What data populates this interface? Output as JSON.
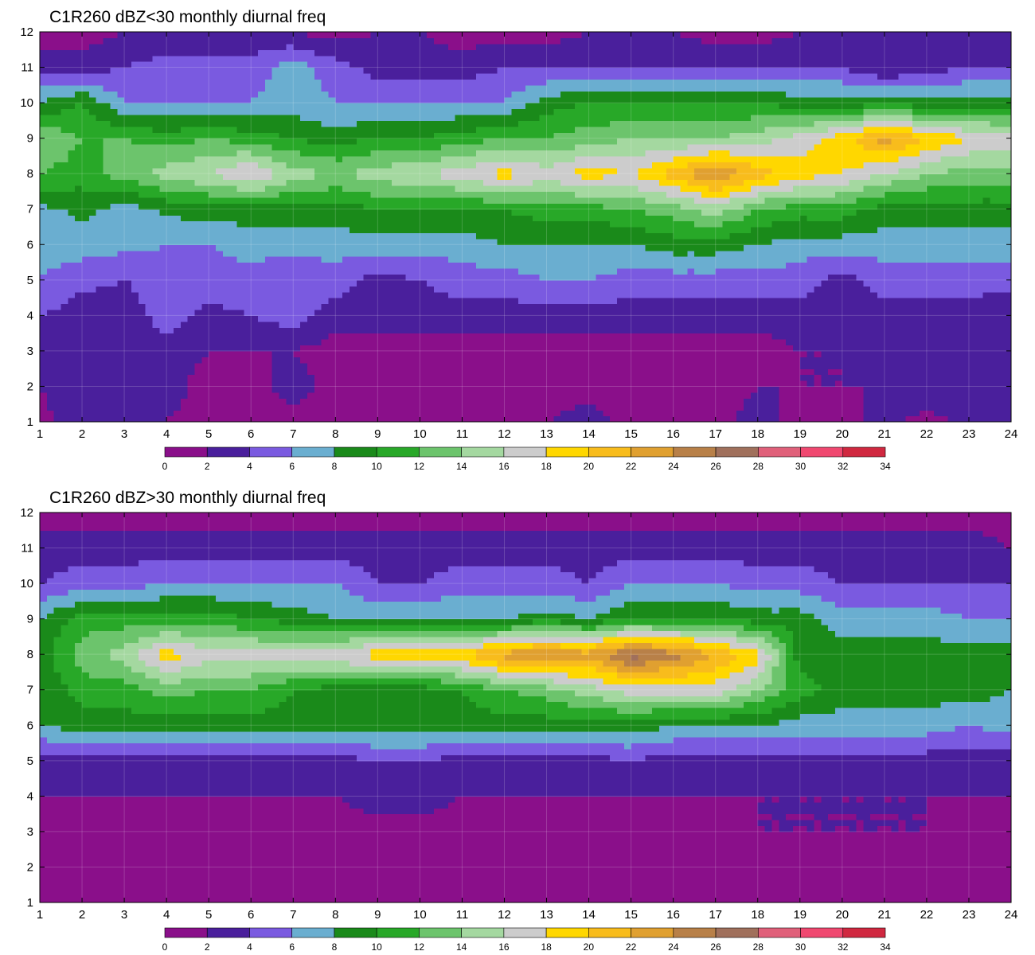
{
  "colorbar": {
    "levels": [
      0,
      2,
      4,
      6,
      8,
      10,
      12,
      14,
      16,
      18,
      20,
      22,
      24,
      26,
      28,
      30,
      32,
      34
    ],
    "colors": [
      "#8a0f8a",
      "#4a1f9c",
      "#7a5ae0",
      "#6aaed0",
      "#1a8a1a",
      "#28a828",
      "#6cc46c",
      "#a4d8a0",
      "#cccccc",
      "#ffd700",
      "#f8bc1c",
      "#e0a030",
      "#b88048",
      "#a0705c",
      "#e0607a",
      "#f04870",
      "#d02840"
    ],
    "contour_line_color": "#f0a030"
  },
  "chart_data": [
    {
      "type": "heatmap",
      "title": "C1R260 dBZ<30 monthly diurnal freq",
      "xlabel": "",
      "ylabel": "",
      "x": [
        1,
        2,
        3,
        4,
        5,
        6,
        7,
        8,
        9,
        10,
        11,
        12,
        13,
        14,
        15,
        16,
        17,
        18,
        19,
        20,
        21,
        22,
        23,
        24
      ],
      "y": [
        1,
        2,
        3,
        4,
        5,
        6,
        7,
        8,
        9,
        10,
        11,
        12
      ],
      "xlim": [
        1,
        24
      ],
      "ylim": [
        1,
        12
      ],
      "grid": true,
      "colorbar_ticks": [
        "0",
        "2",
        "4",
        "6",
        "8",
        "10",
        "12",
        "14",
        "16",
        "18",
        "20",
        "22",
        "24",
        "26",
        "28",
        "30",
        "32",
        "34"
      ],
      "z": [
        [
          1.5,
          3,
          3,
          2,
          1,
          1,
          1,
          1,
          1,
          1,
          1,
          1,
          2,
          3,
          1,
          1,
          1,
          3,
          1,
          1,
          3,
          1,
          3,
          3
        ],
        [
          2,
          3,
          3,
          3,
          1,
          1,
          3,
          1,
          1,
          1,
          1,
          1,
          1,
          1,
          1,
          1,
          1,
          2,
          2,
          2,
          2,
          4,
          3,
          3
        ],
        [
          2,
          3,
          3,
          3,
          2,
          2,
          2,
          1,
          1,
          1,
          1,
          1,
          1,
          1,
          1,
          1,
          1,
          1,
          2,
          2,
          3,
          3,
          3,
          3
        ],
        [
          4,
          3,
          2.8,
          5,
          3.5,
          4,
          5,
          3,
          3,
          3,
          3,
          3,
          3,
          3,
          3,
          3,
          3,
          3,
          3,
          4,
          3,
          3,
          3,
          2
        ],
        [
          6,
          4.5,
          4,
          5,
          5,
          5,
          4,
          5,
          3,
          4,
          5,
          5,
          6,
          6,
          5,
          5,
          5,
          5,
          5,
          3,
          5,
          5,
          5,
          5
        ],
        [
          7,
          7,
          6.5,
          6,
          6,
          7,
          7,
          7,
          7,
          7,
          7,
          8,
          8,
          8,
          8,
          9,
          9,
          8,
          7,
          7,
          7,
          7,
          7,
          7
        ],
        [
          7.5,
          8.5,
          7,
          8.5,
          9,
          9,
          9,
          9,
          10,
          10,
          10,
          10,
          11,
          11,
          12,
          13,
          15,
          12,
          11,
          11,
          9,
          9,
          9,
          9
        ],
        [
          12,
          11,
          13,
          15,
          16,
          18.5,
          15,
          14,
          15,
          16,
          17,
          19,
          17,
          19,
          18,
          21,
          24,
          21,
          19,
          18,
          16,
          14,
          13,
          13
        ],
        [
          14,
          12,
          12,
          11,
          12,
          11,
          10,
          9,
          10,
          10,
          11,
          12,
          12,
          13,
          14,
          14,
          14,
          15,
          17,
          19,
          23,
          20,
          18,
          17
        ],
        [
          8,
          10,
          6,
          6,
          6,
          6,
          7,
          6,
          6,
          6,
          6,
          6,
          9,
          10,
          10,
          10,
          10,
          10,
          9,
          9,
          9,
          9,
          9,
          9
        ],
        [
          3,
          3,
          4,
          5,
          5,
          5,
          7,
          5,
          3,
          3,
          3,
          4,
          4,
          4,
          4,
          4,
          4,
          4,
          4,
          4,
          2,
          3,
          4,
          4
        ],
        [
          1,
          1,
          2,
          2,
          2,
          2,
          2,
          1,
          2,
          2,
          1,
          1,
          1,
          2,
          2,
          2,
          1,
          1,
          2,
          2,
          2,
          2,
          2,
          2
        ]
      ]
    },
    {
      "type": "heatmap",
      "title": "C1R260 dBZ>30 monthly diurnal freq",
      "xlabel": "",
      "ylabel": "",
      "x": [
        1,
        2,
        3,
        4,
        5,
        6,
        7,
        8,
        9,
        10,
        11,
        12,
        13,
        14,
        15,
        16,
        17,
        18,
        19,
        20,
        21,
        22,
        23,
        24
      ],
      "y": [
        1,
        2,
        3,
        4,
        5,
        6,
        7,
        8,
        9,
        10,
        11,
        12
      ],
      "xlim": [
        1,
        24
      ],
      "ylim": [
        1,
        12
      ],
      "grid": true,
      "colorbar_ticks": [
        "0",
        "2",
        "4",
        "6",
        "8",
        "10",
        "12",
        "14",
        "16",
        "18",
        "20",
        "22",
        "24",
        "26",
        "28",
        "30",
        "32",
        "34"
      ],
      "z": [
        [
          1,
          1,
          1,
          1,
          1,
          1,
          1,
          1,
          1,
          1,
          1,
          1,
          1,
          1,
          1,
          1,
          1,
          1,
          1,
          1,
          1,
          1,
          1,
          1
        ],
        [
          1,
          1,
          1,
          1,
          1,
          1,
          1,
          1,
          1,
          1,
          1,
          1,
          1,
          1,
          1,
          1,
          1,
          1,
          1,
          1,
          1,
          1,
          1,
          1
        ],
        [
          1,
          1,
          1,
          1,
          1,
          1,
          1,
          1,
          1,
          1,
          1,
          1,
          1,
          1,
          1,
          1,
          1,
          2,
          2,
          2,
          2,
          2,
          1,
          2
        ],
        [
          2,
          2,
          2,
          2,
          2,
          2,
          2,
          2,
          3,
          3,
          2,
          2,
          2,
          2,
          2,
          2,
          2,
          2,
          2,
          2,
          2,
          2,
          2,
          2
        ],
        [
          3,
          3,
          3,
          3,
          3,
          3,
          3,
          3,
          4,
          4,
          3,
          3,
          3,
          3,
          4,
          3,
          3,
          3,
          3,
          3,
          3,
          3,
          3,
          3
        ],
        [
          8,
          9,
          9,
          9,
          9,
          9,
          9,
          9,
          9,
          9,
          9,
          9,
          9,
          9,
          9,
          8,
          8,
          8,
          7,
          7,
          7,
          7,
          6,
          7
        ],
        [
          8,
          11,
          11,
          13,
          12,
          12,
          10,
          9,
          9,
          9,
          10,
          12,
          13,
          15,
          17,
          17,
          17,
          14,
          11,
          9,
          9,
          9,
          9,
          8
        ],
        [
          9,
          13,
          15,
          19,
          17,
          17,
          17,
          18,
          19,
          19,
          20,
          23,
          24,
          23,
          27,
          25,
          22,
          19,
          9,
          9,
          9,
          9,
          9,
          9
        ],
        [
          8,
          11,
          11,
          11,
          11,
          10,
          9,
          8,
          8,
          8,
          8,
          8,
          9,
          8,
          10,
          10,
          10,
          9,
          9,
          7,
          7,
          7,
          6,
          6
        ],
        [
          4,
          5,
          5,
          6,
          6,
          6,
          6,
          6,
          4,
          4,
          5,
          5,
          5,
          4,
          6,
          6,
          6,
          5,
          5,
          4,
          4,
          4,
          4,
          4
        ],
        [
          3,
          3,
          3,
          3,
          3,
          3,
          3,
          3,
          3,
          3,
          3,
          3,
          3,
          3,
          3,
          3,
          3,
          3,
          3,
          3,
          3,
          3,
          3,
          2
        ],
        [
          1,
          1,
          1,
          1,
          1,
          1,
          1,
          1,
          1,
          1,
          1,
          1,
          1,
          1,
          1,
          1,
          1,
          1,
          1,
          1,
          1,
          1,
          1,
          1
        ]
      ]
    }
  ]
}
